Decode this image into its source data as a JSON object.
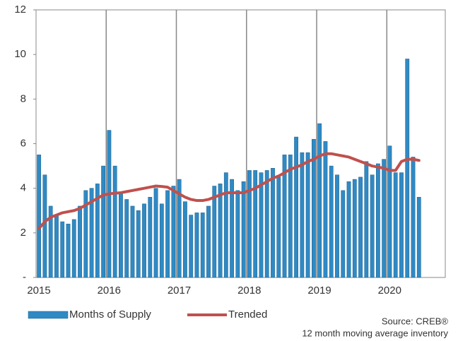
{
  "chart_data": {
    "type": "bar",
    "categories": [
      "2015",
      null,
      null,
      null,
      null,
      null,
      null,
      null,
      null,
      null,
      null,
      null,
      "2016",
      null,
      null,
      null,
      null,
      null,
      null,
      null,
      null,
      null,
      null,
      null,
      "2017",
      null,
      null,
      null,
      null,
      null,
      null,
      null,
      null,
      null,
      null,
      null,
      "2018",
      null,
      null,
      null,
      null,
      null,
      null,
      null,
      null,
      null,
      null,
      null,
      "2019",
      null,
      null,
      null,
      null,
      null,
      null,
      null,
      null,
      null,
      null,
      null,
      "2020",
      null,
      null,
      null,
      null,
      null,
      null,
      null,
      null,
      null
    ],
    "series": [
      {
        "name": "Months of Supply",
        "type": "bar",
        "color": "#2f8ac4",
        "values": [
          5.5,
          4.6,
          3.2,
          2.8,
          2.5,
          2.4,
          2.6,
          3.2,
          3.9,
          4.0,
          4.2,
          5.0,
          6.6,
          5.0,
          3.8,
          3.5,
          3.2,
          3.0,
          3.3,
          3.6,
          4.0,
          3.3,
          3.9,
          4.1,
          4.4,
          3.4,
          2.8,
          2.9,
          2.9,
          3.2,
          4.1,
          4.2,
          4.7,
          4.4,
          3.9,
          4.3,
          4.8,
          4.8,
          4.7,
          4.8,
          4.9,
          4.5,
          5.5,
          5.5,
          6.3,
          5.6,
          5.6,
          6.2,
          6.9,
          6.1,
          5.0,
          4.6,
          3.9,
          4.3,
          4.4,
          4.5,
          5.2,
          4.6,
          5.1,
          5.3,
          5.9,
          4.7,
          4.7,
          9.8,
          5.4,
          3.6,
          null,
          null,
          null,
          null
        ]
      },
      {
        "name": "Trended",
        "type": "line",
        "color": "#c0504d",
        "values": [
          2.2,
          2.5,
          2.7,
          2.8,
          2.9,
          2.95,
          3.0,
          3.1,
          3.25,
          3.4,
          3.55,
          3.7,
          3.75,
          3.78,
          3.8,
          3.85,
          3.9,
          3.95,
          4.0,
          4.05,
          4.1,
          4.08,
          4.05,
          3.9,
          3.75,
          3.6,
          3.5,
          3.45,
          3.45,
          3.5,
          3.6,
          3.7,
          3.8,
          3.8,
          3.8,
          3.8,
          3.9,
          4.0,
          4.15,
          4.3,
          4.45,
          4.55,
          4.7,
          4.85,
          4.95,
          5.05,
          5.2,
          5.3,
          5.45,
          5.55,
          5.55,
          5.5,
          5.45,
          5.4,
          5.3,
          5.2,
          5.1,
          5.0,
          4.95,
          4.9,
          4.8,
          4.8,
          5.2,
          5.3,
          5.3,
          5.25,
          null,
          null,
          null,
          null
        ]
      }
    ],
    "ylim": [
      0,
      12
    ],
    "yticks": [
      {
        "value": 0,
        "label": "-"
      },
      2,
      4,
      6,
      8,
      10,
      12
    ],
    "grid": "x",
    "legend": "bottom",
    "annotations": [
      "Source: CREB®",
      "12 month moving average inventory"
    ]
  }
}
